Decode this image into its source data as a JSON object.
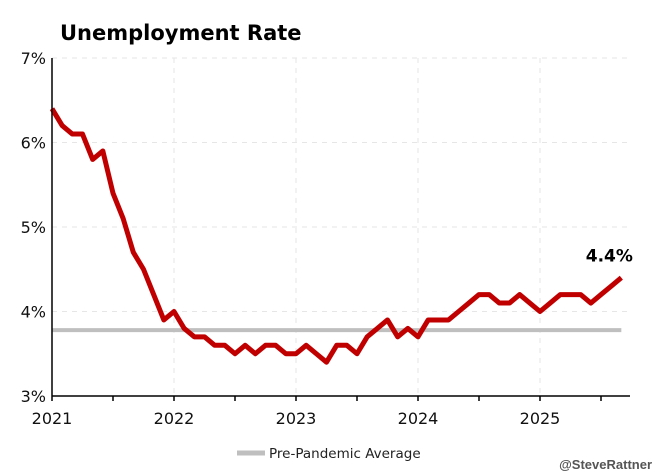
{
  "chart_data": {
    "type": "line",
    "title": "Unemployment Rate",
    "xlabel": "",
    "ylabel": "",
    "ylim": [
      3,
      7
    ],
    "yticks": [
      "3%",
      "4%",
      "5%",
      "6%",
      "7%"
    ],
    "ytick_values": [
      3,
      4,
      5,
      6,
      7
    ],
    "xticks": [
      "2021",
      "2022",
      "2023",
      "2024",
      "2025"
    ],
    "x_start": "2021-01",
    "x_frequency": "monthly",
    "grid": true,
    "series": [
      {
        "name": "Unemployment Rate",
        "color": "#c00000",
        "values": [
          6.4,
          6.2,
          6.1,
          6.1,
          5.8,
          5.9,
          5.4,
          5.1,
          4.7,
          4.5,
          4.2,
          3.9,
          4.0,
          3.8,
          3.7,
          3.7,
          3.6,
          3.6,
          3.5,
          3.6,
          3.5,
          3.6,
          3.6,
          3.5,
          3.5,
          3.6,
          3.5,
          3.4,
          3.6,
          3.6,
          3.5,
          3.7,
          3.8,
          3.9,
          3.7,
          3.8,
          3.7,
          3.9,
          3.9,
          3.9,
          4.0,
          4.1,
          4.2,
          4.2,
          4.1,
          4.1,
          4.2,
          4.1,
          4.0,
          4.1,
          4.2,
          4.2,
          4.2,
          4.1,
          4.2,
          4.3,
          4.4
        ]
      },
      {
        "name": "Pre-Pandemic Average",
        "color": "#bfbfbf",
        "value": 3.78
      }
    ],
    "end_label": "4.4%",
    "legend_position": "bottom-center"
  },
  "credit": "@SteveRattner"
}
